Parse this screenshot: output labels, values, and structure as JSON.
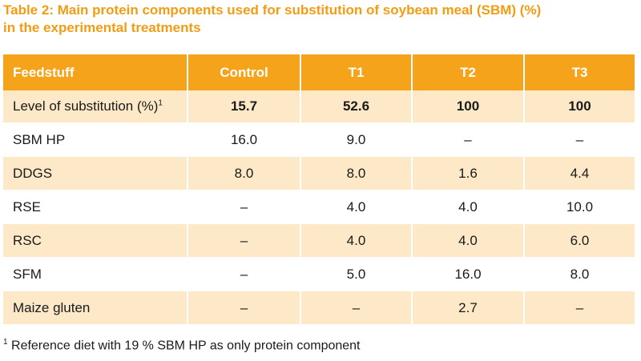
{
  "caption": {
    "line1": "Table 2: Main protein components used for substitution of soybean meal (SBM) (%)",
    "line2": "in the experimental treatments"
  },
  "table": {
    "headers": [
      "Feedstuff",
      "Control",
      "T1",
      "T2",
      "T3"
    ],
    "rows": [
      {
        "label": "Level of substitution (%)",
        "sup": "1",
        "values": [
          "15.7",
          "52.6",
          "100",
          "100"
        ]
      },
      {
        "label": "SBM HP",
        "values": [
          "16.0",
          "9.0",
          "–",
          "–"
        ]
      },
      {
        "label": "DDGS",
        "values": [
          "8.0",
          "8.0",
          "1.6",
          "4.4"
        ]
      },
      {
        "label": "RSE",
        "values": [
          "–",
          "4.0",
          "4.0",
          "10.0"
        ]
      },
      {
        "label": "RSC",
        "values": [
          "–",
          "4.0",
          "4.0",
          "6.0"
        ]
      },
      {
        "label": "SFM",
        "values": [
          "–",
          "5.0",
          "16.0",
          "8.0"
        ]
      },
      {
        "label": "Maize gluten",
        "values": [
          "–",
          "–",
          "2.7",
          "–"
        ]
      }
    ]
  },
  "footnote": {
    "marker": "1",
    "text": " Reference diet with 19 % SBM HP as only protein component"
  },
  "colors": {
    "header_bg": "#f5a31a",
    "caption": "#f39c12",
    "row_stripe": "#fde9c7"
  }
}
